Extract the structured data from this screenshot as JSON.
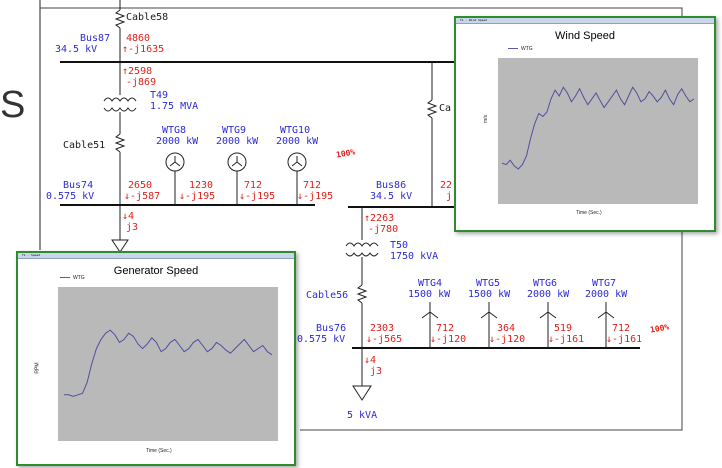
{
  "bus87": {
    "name": "Bus87",
    "kv": "34.5 kV"
  },
  "cable58": "Cable58",
  "flow_top": {
    "p": "4860",
    "q": "-j1635"
  },
  "flow_t49": {
    "p": "2598",
    "q": "-j869"
  },
  "t49": {
    "name": "T49",
    "rating": "1.75 MVA"
  },
  "cable51": "Cable51",
  "cable_right_partial": "Ca",
  "wtg_left": [
    {
      "name": "WTG8",
      "kw": "2000 kW",
      "p": "1230",
      "q": "-j195"
    },
    {
      "name": "WTG9",
      "kw": "2000 kW",
      "p": "712",
      "q": "-j195"
    },
    {
      "name": "WTG10",
      "kw": "2000 kW",
      "p": "712",
      "q": "-j195"
    }
  ],
  "pct_left": "100%",
  "bus74": {
    "name": "Bus74",
    "kv": "0.575 kV",
    "p": "2650",
    "q": "-j587"
  },
  "load_left": {
    "p": "4",
    "q": "j3"
  },
  "bus86": {
    "name": "Bus86",
    "kv": "34.5 kV",
    "p_partial": "22",
    "q_partial": "j"
  },
  "flow_t50": {
    "p": "2263",
    "q": "-j780"
  },
  "t50": {
    "name": "T50",
    "rating": "1750 kVA"
  },
  "cable56": "Cable56",
  "wtg_right": [
    {
      "name": "WTG4",
      "kw": "1500 kW",
      "p": "712",
      "q": "-j120"
    },
    {
      "name": "WTG5",
      "kw": "1500 kW",
      "p": "364",
      "q": "-j120"
    },
    {
      "name": "WTG6",
      "kw": "2000 kW",
      "p": "519",
      "q": "-j161"
    },
    {
      "name": "WTG7",
      "kw": "2000 kW",
      "p": "712",
      "q": "-j161"
    }
  ],
  "pct_right": "100%",
  "bus76": {
    "name": "Bus76",
    "kv": "0.575 kV",
    "p": "2303",
    "q": "-j565"
  },
  "load_right": {
    "p": "4",
    "q": "j3",
    "rating": "5 kVA"
  },
  "left_edge_text": "S",
  "wind_window": {
    "title_bar": "TL - Wind Speed",
    "legend": "WTG",
    "ylabel": "m/s",
    "xlabel": "Time (Sec.)",
    "bg_color": "#b9b9b9",
    "border_color": "#2e8b2e"
  },
  "gen_window": {
    "title_bar": "TL - Speed",
    "legend": "WTG",
    "ylabel": "RPM",
    "xlabel": "Time (Sec.)",
    "bg_color": "#b9b9b9",
    "border_color": "#2e8b2e"
  },
  "chart_data": [
    {
      "type": "line",
      "title": "Wind Speed",
      "xlabel": "Time (Sec.)",
      "ylabel": "m/s",
      "series": [
        {
          "name": "WTG",
          "values": [
            0.28,
            0.27,
            0.3,
            0.26,
            0.24,
            0.27,
            0.33,
            0.45,
            0.55,
            0.62,
            0.6,
            0.63,
            0.72,
            0.78,
            0.74,
            0.8,
            0.76,
            0.7,
            0.74,
            0.79,
            0.73,
            0.68,
            0.72,
            0.76,
            0.71,
            0.66,
            0.7,
            0.74,
            0.78,
            0.72,
            0.68,
            0.74,
            0.8,
            0.76,
            0.7,
            0.72,
            0.77,
            0.74,
            0.7,
            0.73,
            0.78,
            0.72,
            0.68,
            0.75,
            0.79,
            0.74,
            0.7,
            0.72
          ]
        }
      ]
    },
    {
      "type": "line",
      "title": "Generator Speed",
      "xlabel": "Time (Sec.)",
      "ylabel": "RPM",
      "series": [
        {
          "name": "WTG",
          "values": [
            0.3,
            0.3,
            0.29,
            0.3,
            0.31,
            0.38,
            0.5,
            0.6,
            0.66,
            0.7,
            0.72,
            0.69,
            0.64,
            0.66,
            0.7,
            0.68,
            0.63,
            0.6,
            0.63,
            0.67,
            0.64,
            0.58,
            0.6,
            0.64,
            0.66,
            0.62,
            0.58,
            0.6,
            0.64,
            0.66,
            0.62,
            0.58,
            0.6,
            0.64,
            0.62,
            0.59,
            0.57,
            0.6,
            0.63,
            0.66,
            0.62,
            0.58,
            0.6,
            0.62,
            0.58,
            0.56
          ]
        }
      ]
    }
  ]
}
